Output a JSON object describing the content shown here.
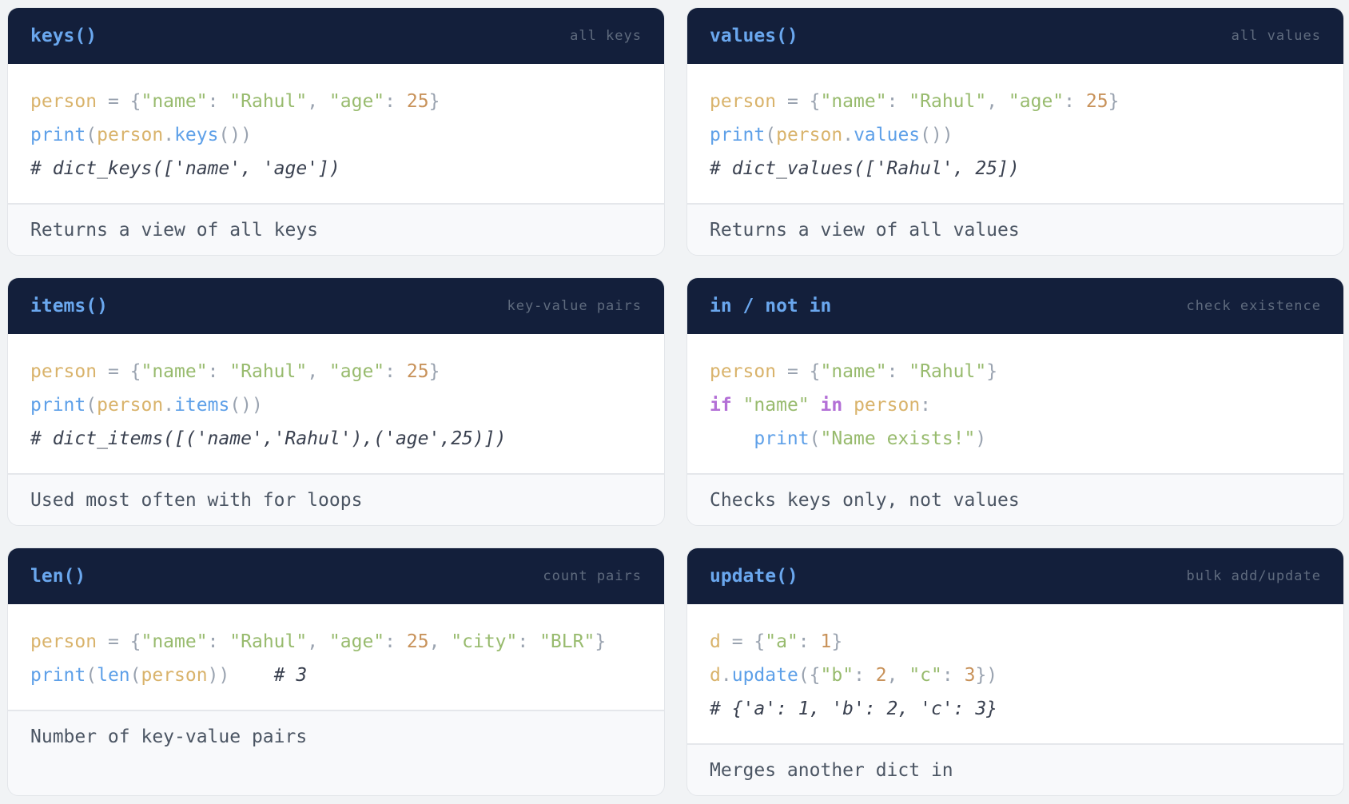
{
  "colors": {
    "header_bg": "#131f3b",
    "title": "#6aa7ee",
    "variable": "#d9b36b",
    "string": "#98bb6e",
    "number": "#c8925a",
    "function": "#5ea0e8",
    "keyword": "#b36fd6",
    "comment": "#3a4150"
  },
  "cards": [
    {
      "title": "keys()",
      "tag": "all keys",
      "footer": "Returns a view of all keys",
      "code": [
        [
          [
            "var",
            "person"
          ],
          [
            "p",
            " = {"
          ],
          [
            "s",
            "\"name\""
          ],
          [
            "p",
            ": "
          ],
          [
            "s",
            "\"Rahul\""
          ],
          [
            "p",
            ", "
          ],
          [
            "s",
            "\"age\""
          ],
          [
            "p",
            ": "
          ],
          [
            "n",
            "25"
          ],
          [
            "p",
            "}"
          ]
        ],
        [
          [
            "f",
            "print"
          ],
          [
            "p",
            "("
          ],
          [
            "var",
            "person"
          ],
          [
            "p",
            "."
          ],
          [
            "f",
            "keys"
          ],
          [
            "p",
            "())"
          ]
        ],
        [
          [
            "c",
            "# dict_keys(['name', 'age'])"
          ]
        ]
      ]
    },
    {
      "title": "values()",
      "tag": "all values",
      "footer": "Returns a view of all values",
      "code": [
        [
          [
            "var",
            "person"
          ],
          [
            "p",
            " = {"
          ],
          [
            "s",
            "\"name\""
          ],
          [
            "p",
            ": "
          ],
          [
            "s",
            "\"Rahul\""
          ],
          [
            "p",
            ", "
          ],
          [
            "s",
            "\"age\""
          ],
          [
            "p",
            ": "
          ],
          [
            "n",
            "25"
          ],
          [
            "p",
            "}"
          ]
        ],
        [
          [
            "f",
            "print"
          ],
          [
            "p",
            "("
          ],
          [
            "var",
            "person"
          ],
          [
            "p",
            "."
          ],
          [
            "f",
            "values"
          ],
          [
            "p",
            "())"
          ]
        ],
        [
          [
            "c",
            "# dict_values(['Rahul', 25])"
          ]
        ]
      ]
    },
    {
      "title": "items()",
      "tag": "key-value pairs",
      "footer": "Used most often with for loops",
      "code": [
        [
          [
            "var",
            "person"
          ],
          [
            "p",
            " = {"
          ],
          [
            "s",
            "\"name\""
          ],
          [
            "p",
            ": "
          ],
          [
            "s",
            "\"Rahul\""
          ],
          [
            "p",
            ", "
          ],
          [
            "s",
            "\"age\""
          ],
          [
            "p",
            ": "
          ],
          [
            "n",
            "25"
          ],
          [
            "p",
            "}"
          ]
        ],
        [
          [
            "f",
            "print"
          ],
          [
            "p",
            "("
          ],
          [
            "var",
            "person"
          ],
          [
            "p",
            "."
          ],
          [
            "f",
            "items"
          ],
          [
            "p",
            "())"
          ]
        ],
        [
          [
            "c",
            "# dict_items([('name','Rahul'),('age',25)])"
          ]
        ]
      ]
    },
    {
      "title": "in / not in",
      "tag": "check existence",
      "footer": "Checks keys only, not values",
      "code": [
        [
          [
            "var",
            "person"
          ],
          [
            "p",
            " = {"
          ],
          [
            "s",
            "\"name\""
          ],
          [
            "p",
            ": "
          ],
          [
            "s",
            "\"Rahul\""
          ],
          [
            "p",
            "}"
          ]
        ],
        [
          [
            "k",
            "if"
          ],
          [
            "p",
            " "
          ],
          [
            "s",
            "\"name\""
          ],
          [
            "p",
            " "
          ],
          [
            "k",
            "in"
          ],
          [
            "p",
            " "
          ],
          [
            "var",
            "person"
          ],
          [
            "p",
            ":"
          ]
        ],
        [
          [
            "p",
            "    "
          ],
          [
            "f",
            "print"
          ],
          [
            "p",
            "("
          ],
          [
            "s",
            "\"Name exists!\""
          ],
          [
            "p",
            ")"
          ]
        ]
      ]
    },
    {
      "title": "len()",
      "tag": "count pairs",
      "footer": "Number of key-value pairs",
      "code": [
        [
          [
            "var",
            "person"
          ],
          [
            "p",
            " = {"
          ],
          [
            "s",
            "\"name\""
          ],
          [
            "p",
            ": "
          ],
          [
            "s",
            "\"Rahul\""
          ],
          [
            "p",
            ", "
          ],
          [
            "s",
            "\"age\""
          ],
          [
            "p",
            ": "
          ],
          [
            "n",
            "25"
          ],
          [
            "p",
            ", "
          ],
          [
            "s",
            "\"city\""
          ],
          [
            "p",
            ": "
          ],
          [
            "s",
            "\"BLR\""
          ],
          [
            "p",
            "}"
          ]
        ],
        [
          [
            "f",
            "print"
          ],
          [
            "p",
            "("
          ],
          [
            "f",
            "len"
          ],
          [
            "p",
            "("
          ],
          [
            "var",
            "person"
          ],
          [
            "p",
            "))"
          ],
          [
            "p",
            "    "
          ],
          [
            "c",
            "# 3"
          ]
        ]
      ]
    },
    {
      "title": "update()",
      "tag": "bulk add/update",
      "footer": "Merges another dict in",
      "code": [
        [
          [
            "var",
            "d"
          ],
          [
            "p",
            " = {"
          ],
          [
            "s",
            "\"a\""
          ],
          [
            "p",
            ": "
          ],
          [
            "n",
            "1"
          ],
          [
            "p",
            "}"
          ]
        ],
        [
          [
            "var",
            "d"
          ],
          [
            "p",
            "."
          ],
          [
            "f",
            "update"
          ],
          [
            "p",
            "({"
          ],
          [
            "s",
            "\"b\""
          ],
          [
            "p",
            ": "
          ],
          [
            "n",
            "2"
          ],
          [
            "p",
            ", "
          ],
          [
            "s",
            "\"c\""
          ],
          [
            "p",
            ": "
          ],
          [
            "n",
            "3"
          ],
          [
            "p",
            "})"
          ]
        ],
        [
          [
            "c",
            "# {'a': 1, 'b': 2, 'c': 3}"
          ]
        ]
      ]
    }
  ]
}
